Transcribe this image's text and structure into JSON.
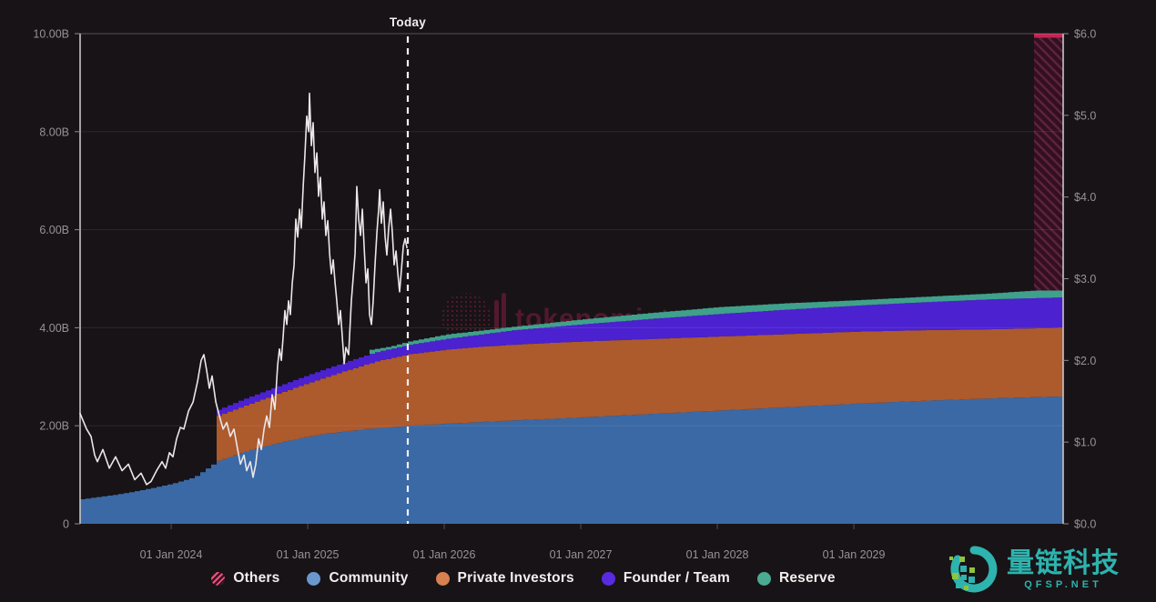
{
  "watermark_center": {
    "text": "tokenomist",
    "color": "#5d1b31",
    "opacity": 0.85
  },
  "watermark_corner": {
    "title": "量链科技",
    "subtitle": "QFSP.NET",
    "color": "#2eb3ae",
    "accent_green": "#8fc43f"
  },
  "legend": {
    "items": [
      {
        "key": "others",
        "label": "Others"
      },
      {
        "key": "community",
        "label": "Community"
      },
      {
        "key": "private",
        "label": "Private Investors"
      },
      {
        "key": "founder",
        "label": "Founder / Team"
      },
      {
        "key": "reserve",
        "label": "Reserve"
      }
    ]
  },
  "chart_data": {
    "type": "area",
    "subtype": "stacked-step-area-with-price-line",
    "title": "",
    "today": {
      "t": 2025.733,
      "label": "Today"
    },
    "x_axis": {
      "range": [
        2023.333,
        2030.533
      ],
      "ticks": [
        {
          "t": 2024,
          "label": "01 Jan 2024"
        },
        {
          "t": 2025,
          "label": "01 Jan 2025"
        },
        {
          "t": 2026,
          "label": "01 Jan 2026"
        },
        {
          "t": 2027,
          "label": "01 Jan 2027"
        },
        {
          "t": 2028,
          "label": "01 Jan 2028"
        },
        {
          "t": 2029,
          "label": "01 Jan 2029"
        }
      ]
    },
    "y_left": {
      "unit": "tokens (billions)",
      "range": [
        0,
        10
      ],
      "ticks": [
        {
          "v": 10,
          "label": "10.00B"
        },
        {
          "v": 8,
          "label": "8.00B"
        },
        {
          "v": 6,
          "label": "6.00B"
        },
        {
          "v": 4,
          "label": "4.00B"
        },
        {
          "v": 2,
          "label": "2.00B"
        },
        {
          "v": 0,
          "label": "0"
        }
      ]
    },
    "y_right": {
      "unit": "USD",
      "range": [
        0,
        6
      ],
      "ticks": [
        {
          "v": 6,
          "label": "$6.0"
        },
        {
          "v": 5,
          "label": "$5.0"
        },
        {
          "v": 4,
          "label": "$4.0"
        },
        {
          "v": 3,
          "label": "$3.0"
        },
        {
          "v": 2,
          "label": "$2.0"
        },
        {
          "v": 1,
          "label": "$1.0"
        },
        {
          "v": 0,
          "label": "$0.0"
        }
      ]
    },
    "grid_values_left": [
      2,
      4,
      6,
      8
    ],
    "bands": [
      {
        "name": "Community",
        "fill": "#3b69a5",
        "legend_color": "#6b97cf",
        "top": [
          [
            2023.333,
            0.5
          ],
          [
            2023.6,
            0.6
          ],
          [
            2023.8,
            0.7
          ],
          [
            2024.0,
            0.82
          ],
          [
            2024.16,
            0.95
          ],
          [
            2024.33,
            1.28
          ],
          [
            2024.5,
            1.45
          ],
          [
            2024.7,
            1.6
          ],
          [
            2024.9,
            1.73
          ],
          [
            2025.1,
            1.83
          ],
          [
            2025.4,
            1.93
          ],
          [
            2025.733,
            2.0
          ],
          [
            2026.0,
            2.04
          ],
          [
            2026.5,
            2.11
          ],
          [
            2027.0,
            2.17
          ],
          [
            2027.5,
            2.24
          ],
          [
            2028.0,
            2.31
          ],
          [
            2028.5,
            2.38
          ],
          [
            2029.0,
            2.45
          ],
          [
            2029.5,
            2.51
          ],
          [
            2030.0,
            2.56
          ],
          [
            2030.533,
            2.6
          ]
        ]
      },
      {
        "name": "Private Investors",
        "fill": "#ad5a2d",
        "legend_color": "#d6814f",
        "top": [
          [
            2024.327,
            2.2
          ],
          [
            2024.5,
            2.38
          ],
          [
            2024.7,
            2.58
          ],
          [
            2024.9,
            2.78
          ],
          [
            2025.1,
            2.97
          ],
          [
            2025.3,
            3.15
          ],
          [
            2025.5,
            3.32
          ],
          [
            2025.733,
            3.46
          ],
          [
            2026.0,
            3.55
          ],
          [
            2026.3,
            3.62
          ],
          [
            2026.6,
            3.67
          ],
          [
            2027.0,
            3.72
          ],
          [
            2027.5,
            3.77
          ],
          [
            2028.0,
            3.82
          ],
          [
            2028.5,
            3.87
          ],
          [
            2029.0,
            3.92
          ],
          [
            2029.5,
            3.95
          ],
          [
            2030.0,
            3.97
          ],
          [
            2030.533,
            4.0
          ]
        ]
      },
      {
        "name": "Founder / Team",
        "fill": "#4b21d0",
        "legend_color": "#5a2ae0",
        "top": [
          [
            2024.327,
            2.32
          ],
          [
            2024.5,
            2.52
          ],
          [
            2024.7,
            2.73
          ],
          [
            2024.9,
            2.94
          ],
          [
            2025.1,
            3.14
          ],
          [
            2025.3,
            3.33
          ],
          [
            2025.5,
            3.51
          ],
          [
            2025.733,
            3.65
          ],
          [
            2026.0,
            3.77
          ],
          [
            2026.5,
            3.95
          ],
          [
            2027.0,
            4.07
          ],
          [
            2027.5,
            4.18
          ],
          [
            2028.0,
            4.28
          ],
          [
            2028.5,
            4.37
          ],
          [
            2029.0,
            4.45
          ],
          [
            2029.5,
            4.52
          ],
          [
            2030.0,
            4.58
          ],
          [
            2030.533,
            4.62
          ]
        ]
      },
      {
        "name": "Reserve",
        "fill": "#3fa18c",
        "legend_color": "#4aab93",
        "top": [
          [
            2025.45,
            3.55
          ],
          [
            2025.6,
            3.62
          ],
          [
            2025.733,
            3.72
          ],
          [
            2026.0,
            3.86
          ],
          [
            2026.5,
            4.02
          ],
          [
            2027.0,
            4.17
          ],
          [
            2027.5,
            4.3
          ],
          [
            2028.0,
            4.42
          ],
          [
            2028.5,
            4.5
          ],
          [
            2029.0,
            4.56
          ],
          [
            2029.5,
            4.63
          ],
          [
            2030.0,
            4.7
          ],
          [
            2030.533,
            4.8
          ]
        ]
      }
    ],
    "others": {
      "name": "Others",
      "start_t": 2030.32,
      "end_t": 2030.533,
      "top_value": 10.0,
      "fill": "#33101f",
      "stripe": "#5e2240",
      "cap_color": "#c32553",
      "legend_color": "#e8547e",
      "legend_bg": "#3a1022"
    },
    "price_line": {
      "name": "Price (USD)",
      "color": "#e9e7e8",
      "points": [
        [
          2023.333,
          1.35
        ],
        [
          2023.38,
          1.16
        ],
        [
          2023.413,
          1.07
        ],
        [
          2023.44,
          0.84
        ],
        [
          2023.46,
          0.76
        ],
        [
          2023.5,
          0.91
        ],
        [
          2023.547,
          0.68
        ],
        [
          2023.593,
          0.82
        ],
        [
          2023.64,
          0.65
        ],
        [
          2023.687,
          0.73
        ],
        [
          2023.733,
          0.54
        ],
        [
          2023.78,
          0.62
        ],
        [
          2023.82,
          0.48
        ],
        [
          2023.853,
          0.52
        ],
        [
          2023.893,
          0.65
        ],
        [
          2023.933,
          0.76
        ],
        [
          2023.96,
          0.68
        ],
        [
          2023.987,
          0.87
        ],
        [
          2024.013,
          0.82
        ],
        [
          2024.04,
          1.04
        ],
        [
          2024.067,
          1.18
        ],
        [
          2024.093,
          1.16
        ],
        [
          2024.127,
          1.38
        ],
        [
          2024.16,
          1.49
        ],
        [
          2024.193,
          1.74
        ],
        [
          2024.22,
          2.0
        ],
        [
          2024.24,
          2.07
        ],
        [
          2024.26,
          1.88
        ],
        [
          2024.28,
          1.66
        ],
        [
          2024.3,
          1.81
        ],
        [
          2024.327,
          1.49
        ],
        [
          2024.353,
          1.32
        ],
        [
          2024.38,
          1.16
        ],
        [
          2024.407,
          1.24
        ],
        [
          2024.433,
          1.07
        ],
        [
          2024.46,
          1.16
        ],
        [
          2024.487,
          0.91
        ],
        [
          2024.507,
          0.73
        ],
        [
          2024.533,
          0.84
        ],
        [
          2024.553,
          0.65
        ],
        [
          2024.58,
          0.76
        ],
        [
          2024.6,
          0.57
        ],
        [
          2024.62,
          0.73
        ],
        [
          2024.64,
          1.04
        ],
        [
          2024.66,
          0.91
        ],
        [
          2024.68,
          1.16
        ],
        [
          2024.7,
          1.32
        ],
        [
          2024.72,
          1.18
        ],
        [
          2024.74,
          1.58
        ],
        [
          2024.76,
          1.4
        ],
        [
          2024.78,
          1.94
        ],
        [
          2024.793,
          2.14
        ],
        [
          2024.807,
          2.0
        ],
        [
          2024.82,
          2.28
        ],
        [
          2024.833,
          2.61
        ],
        [
          2024.847,
          2.44
        ],
        [
          2024.86,
          2.73
        ],
        [
          2024.873,
          2.56
        ],
        [
          2024.887,
          2.95
        ],
        [
          2024.9,
          3.17
        ],
        [
          2024.913,
          3.73
        ],
        [
          2024.927,
          3.51
        ],
        [
          2024.94,
          3.85
        ],
        [
          2024.953,
          3.62
        ],
        [
          2024.967,
          4.13
        ],
        [
          2024.98,
          4.52
        ],
        [
          2024.993,
          4.99
        ],
        [
          2025.007,
          4.8
        ],
        [
          2025.013,
          5.27
        ],
        [
          2025.027,
          4.63
        ],
        [
          2025.04,
          4.91
        ],
        [
          2025.053,
          4.3
        ],
        [
          2025.067,
          4.54
        ],
        [
          2025.08,
          4.01
        ],
        [
          2025.093,
          4.24
        ],
        [
          2025.107,
          3.73
        ],
        [
          2025.12,
          3.94
        ],
        [
          2025.133,
          3.53
        ],
        [
          2025.147,
          3.71
        ],
        [
          2025.16,
          3.31
        ],
        [
          2025.173,
          3.06
        ],
        [
          2025.187,
          3.23
        ],
        [
          2025.2,
          2.95
        ],
        [
          2025.213,
          2.73
        ],
        [
          2025.227,
          2.44
        ],
        [
          2025.24,
          2.61
        ],
        [
          2025.253,
          2.3
        ],
        [
          2025.267,
          1.96
        ],
        [
          2025.28,
          2.16
        ],
        [
          2025.3,
          2.07
        ],
        [
          2025.32,
          2.73
        ],
        [
          2025.333,
          3.01
        ],
        [
          2025.347,
          3.31
        ],
        [
          2025.36,
          4.13
        ],
        [
          2025.373,
          3.73
        ],
        [
          2025.387,
          3.53
        ],
        [
          2025.4,
          3.85
        ],
        [
          2025.413,
          3.4
        ],
        [
          2025.427,
          2.95
        ],
        [
          2025.44,
          3.12
        ],
        [
          2025.453,
          2.56
        ],
        [
          2025.467,
          2.44
        ],
        [
          2025.48,
          2.73
        ],
        [
          2025.493,
          3.17
        ],
        [
          2025.507,
          3.57
        ],
        [
          2025.52,
          3.85
        ],
        [
          2025.527,
          4.09
        ],
        [
          2025.54,
          3.68
        ],
        [
          2025.553,
          3.94
        ],
        [
          2025.567,
          3.51
        ],
        [
          2025.58,
          3.29
        ],
        [
          2025.593,
          3.62
        ],
        [
          2025.607,
          3.85
        ],
        [
          2025.62,
          3.57
        ],
        [
          2025.633,
          3.17
        ],
        [
          2025.647,
          3.34
        ],
        [
          2025.66,
          3.06
        ],
        [
          2025.673,
          2.84
        ],
        [
          2025.687,
          3.12
        ],
        [
          2025.7,
          3.4
        ],
        [
          2025.713,
          3.49
        ],
        [
          2025.727,
          3.38
        ]
      ]
    }
  }
}
